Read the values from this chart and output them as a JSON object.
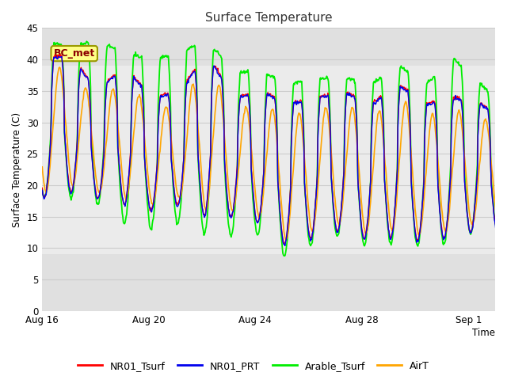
{
  "title": "Surface Temperature",
  "xlabel": "Time",
  "ylabel": "Surface Temperature (C)",
  "ylim": [
    0,
    45
  ],
  "yticks": [
    0,
    5,
    10,
    15,
    20,
    25,
    30,
    35,
    40,
    45
  ],
  "annotation_label": "BC_met",
  "series_colors": {
    "NR01_Tsurf": "#FF0000",
    "NR01_PRT": "#0000EE",
    "Arable_Tsurf": "#00EE00",
    "AirT": "#FFA500"
  },
  "xtick_labels": [
    "Aug 16",
    "Aug 20",
    "Aug 24",
    "Aug 28",
    "Sep 1"
  ],
  "xtick_days": [
    0,
    4,
    8,
    12,
    16
  ],
  "figsize": [
    6.4,
    4.8
  ],
  "dpi": 100,
  "day_peaks_base": [
    40,
    41,
    35,
    39,
    34,
    35,
    41,
    34,
    35,
    33,
    34,
    35,
    33,
    36,
    33,
    34,
    33,
    30
  ],
  "day_troughs_base": [
    18,
    19,
    18,
    17,
    16,
    17,
    15,
    15,
    14,
    10,
    12,
    13,
    11,
    12,
    11,
    12,
    13,
    13
  ],
  "day_peaks_arable": [
    42,
    41,
    42,
    40,
    39,
    40,
    42,
    37,
    37,
    35,
    36,
    36,
    35,
    38,
    35,
    39,
    35,
    31
  ],
  "day_troughs_arable": [
    18,
    18,
    17,
    14,
    13,
    14,
    12,
    12,
    12,
    8,
    11,
    12,
    10,
    11,
    10,
    11,
    13,
    13
  ],
  "bg_band_dark_lo": [
    0,
    39
  ],
  "bg_band_dark_hi": [
    9,
    45
  ],
  "bg_mid": [
    9,
    39
  ],
  "bg_color_dark": "#E0E0E0",
  "bg_color_mid": "#EBEBEB"
}
